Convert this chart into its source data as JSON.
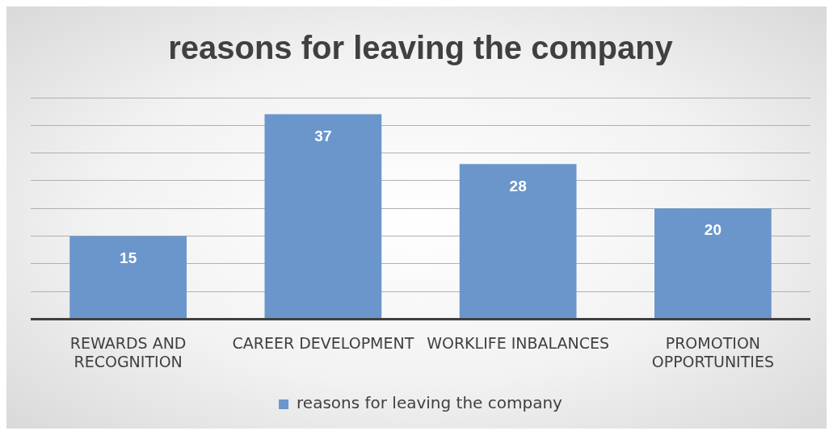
{
  "chart_data": {
    "type": "bar",
    "title": "reasons for leaving the company",
    "categories": [
      "REWARDS AND RECOGNITION",
      "CAREER DEVELOPMENT",
      "WORKLIFE INBALANCES",
      "PROMOTION OPPORTUNITIES"
    ],
    "series": [
      {
        "name": "reasons for leaving the company",
        "color": "#6a96cc",
        "values": [
          15,
          37,
          28,
          20
        ]
      }
    ],
    "tick_labels": "x",
    "grid": "y",
    "legend": "bottom",
    "data_labels": true
  }
}
